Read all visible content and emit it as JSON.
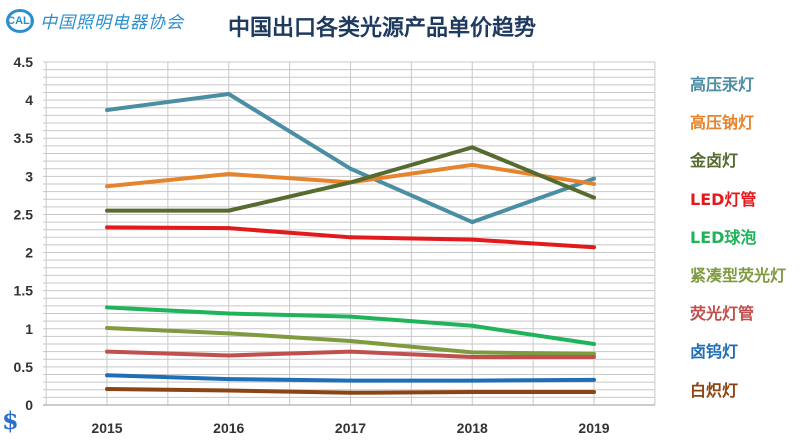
{
  "logo": {
    "mark": "CALI",
    "text": "中国照明电器协会"
  },
  "currency_icon": "dollar-icon",
  "chart_data": {
    "type": "line",
    "title": "中国出口各类光源产品单价趋势",
    "categories": [
      "2015",
      "2016",
      "2017",
      "2018",
      "2019"
    ],
    "ylim": [
      0,
      4.5
    ],
    "yticks": [
      "0",
      "0.5",
      "1",
      "1.5",
      "2",
      "2.5",
      "3",
      "3.5",
      "4",
      "4.5"
    ],
    "grid": true,
    "legend": "right",
    "series": [
      {
        "name": "高压汞灯",
        "color": "#4a8ea3",
        "values": [
          3.87,
          4.08,
          3.1,
          2.4,
          2.97
        ]
      },
      {
        "name": "高压钠灯",
        "color": "#e6842e",
        "values": [
          2.87,
          3.03,
          2.92,
          3.15,
          2.9
        ]
      },
      {
        "name": "金卤灯",
        "color": "#556b2f",
        "values": [
          2.55,
          2.55,
          2.92,
          3.38,
          2.72
        ]
      },
      {
        "name": "LED灯管",
        "color": "#e31a1c",
        "values": [
          2.33,
          2.32,
          2.2,
          2.17,
          2.07
        ]
      },
      {
        "name": "LED球泡",
        "color": "#1fb35a",
        "values": [
          1.28,
          1.2,
          1.16,
          1.04,
          0.8
        ]
      },
      {
        "name": "紧凑型荧光灯",
        "color": "#7f9a3f",
        "values": [
          1.01,
          0.94,
          0.84,
          0.69,
          0.67
        ]
      },
      {
        "name": "荧光灯管",
        "color": "#c0504d",
        "values": [
          0.7,
          0.65,
          0.7,
          0.63,
          0.63
        ]
      },
      {
        "name": "卤钨灯",
        "color": "#1f6fb5",
        "values": [
          0.39,
          0.34,
          0.32,
          0.32,
          0.33
        ]
      },
      {
        "name": "白炽灯",
        "color": "#8b4513",
        "values": [
          0.21,
          0.19,
          0.16,
          0.17,
          0.17
        ]
      }
    ]
  }
}
